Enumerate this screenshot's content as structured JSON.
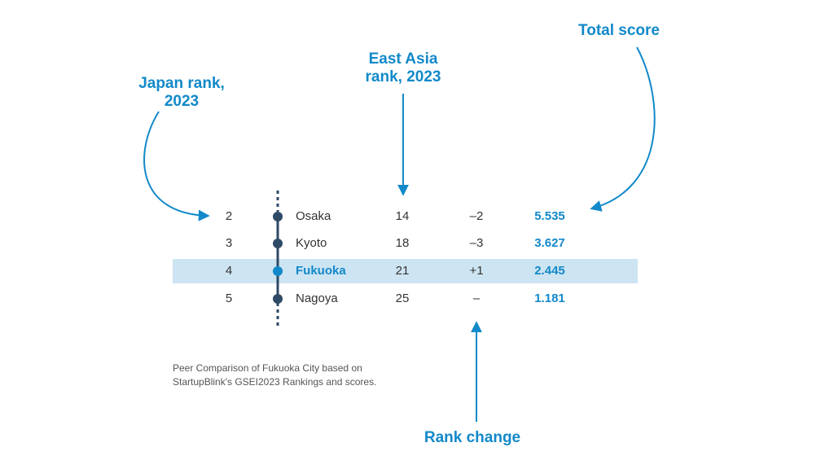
{
  "callouts": {
    "japan_rank": [
      "Japan rank,",
      "2023"
    ],
    "east_asia_rank": [
      "East Asia",
      "rank, 2023"
    ],
    "total_score": "Total score",
    "rank_change": "Rank change"
  },
  "rows": [
    {
      "japan_rank": "2",
      "city": "Osaka",
      "east_asia_rank": "14",
      "rank_change": "–2",
      "score": "5.535",
      "highlight": false
    },
    {
      "japan_rank": "3",
      "city": "Kyoto",
      "east_asia_rank": "18",
      "rank_change": "–3",
      "score": "3.627",
      "highlight": false
    },
    {
      "japan_rank": "4",
      "city": "Fukuoka",
      "east_asia_rank": "21",
      "rank_change": "+1",
      "score": "2.445",
      "highlight": true
    },
    {
      "japan_rank": "5",
      "city": "Nagoya",
      "east_asia_rank": "25",
      "rank_change": "–",
      "score": "1.181",
      "highlight": false
    }
  ],
  "caption": [
    "Peer Comparison of Fukuoka City based on",
    "StartupBlink's GSEI2023 Rankings and scores."
  ],
  "colors": {
    "accent": "#1289c9",
    "node": "#2e4a66",
    "highlight": "#cde4f2"
  }
}
